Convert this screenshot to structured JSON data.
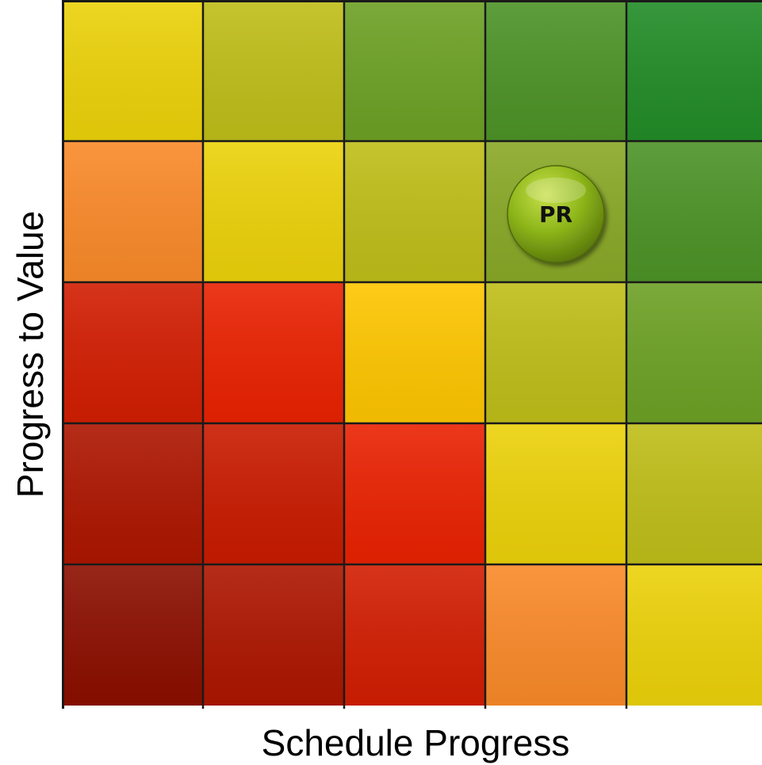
{
  "chart_data": {
    "type": "heatmap",
    "title": "",
    "xlabel": "Schedule Progress",
    "ylabel": "Progress to Value",
    "columns": 5,
    "rows": 5,
    "grid": true,
    "cell_colors": [
      [
        "#ECD20A",
        "#BFBE19",
        "#6DA125",
        "#4D9327",
        "#228C27"
      ],
      [
        "#FA8A2A",
        "#ECD20A",
        "#BFBE19",
        "#89A927",
        "#4D9327"
      ],
      [
        "#D21E02",
        "#EA2202",
        "#FEC600",
        "#BFBE19",
        "#6DA125"
      ],
      [
        "#AD1600",
        "#C91B00",
        "#EA2202",
        "#ECD20A",
        "#BFBE19"
      ],
      [
        "#8C0F00",
        "#AD1600",
        "#D21E02",
        "#FA8A2A",
        "#ECD20A"
      ]
    ],
    "markers": [
      {
        "label": "PR",
        "column": 4,
        "row": 2,
        "color": "#8DB61A"
      }
    ]
  }
}
